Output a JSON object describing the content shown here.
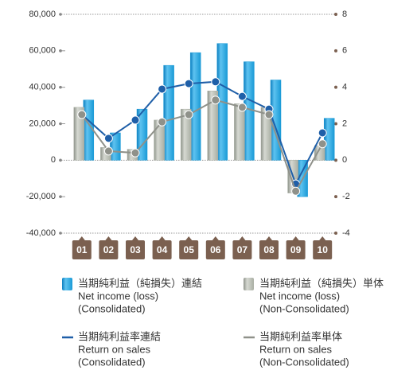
{
  "chart_data": {
    "type": "bar-line",
    "categories": [
      "01",
      "02",
      "03",
      "04",
      "05",
      "06",
      "07",
      "08",
      "09",
      "10"
    ],
    "series": [
      {
        "name": "当期純利益（純損失）連結",
        "name_en": [
          "Net income (loss)",
          "(Consolidated)"
        ],
        "type": "bar",
        "color": "#1a9ad6",
        "values": [
          33000,
          15000,
          28000,
          52000,
          59000,
          64000,
          54000,
          44000,
          -20000,
          23000
        ]
      },
      {
        "name": "当期純利益（純損失）単体",
        "name_en": [
          "Net income (loss)",
          "(Non-Consolidated)"
        ],
        "type": "bar",
        "color": "#a9aea3",
        "values": [
          29000,
          7000,
          6000,
          22000,
          28000,
          38000,
          31000,
          29000,
          -18000,
          8000
        ]
      },
      {
        "name": "当期純利益率連結",
        "name_en": [
          "Return on sales",
          "(Consolidated)"
        ],
        "type": "line",
        "axis": "y2",
        "color": "#1f5fa8",
        "values": [
          2.5,
          1.2,
          2.2,
          3.9,
          4.2,
          4.3,
          3.5,
          2.8,
          -1.3,
          1.5
        ]
      },
      {
        "name": "当期純利益率単体",
        "name_en": [
          "Return on sales",
          "(Non-Consolidated)"
        ],
        "type": "line",
        "axis": "y2",
        "color": "#8f918a",
        "values": [
          2.5,
          0.5,
          0.4,
          2.1,
          2.5,
          3.3,
          2.9,
          2.5,
          -1.7,
          0.9
        ]
      }
    ],
    "ylim": [
      -40000,
      80000
    ],
    "yticks": [
      {
        "value": -40000,
        "label": "-40,000"
      },
      {
        "value": -20000,
        "label": "-20,000"
      },
      0,
      {
        "value": 20000,
        "label": "20,000"
      },
      {
        "value": 40000,
        "label": "40,000"
      },
      {
        "value": 60000,
        "label": "60,000"
      },
      {
        "value": 80000,
        "label": "80,000"
      }
    ],
    "y2lim": [
      -4,
      8
    ],
    "y2ticks": [
      -4,
      -2,
      0,
      2,
      4,
      6,
      8
    ],
    "category_color": "#7b6050"
  }
}
